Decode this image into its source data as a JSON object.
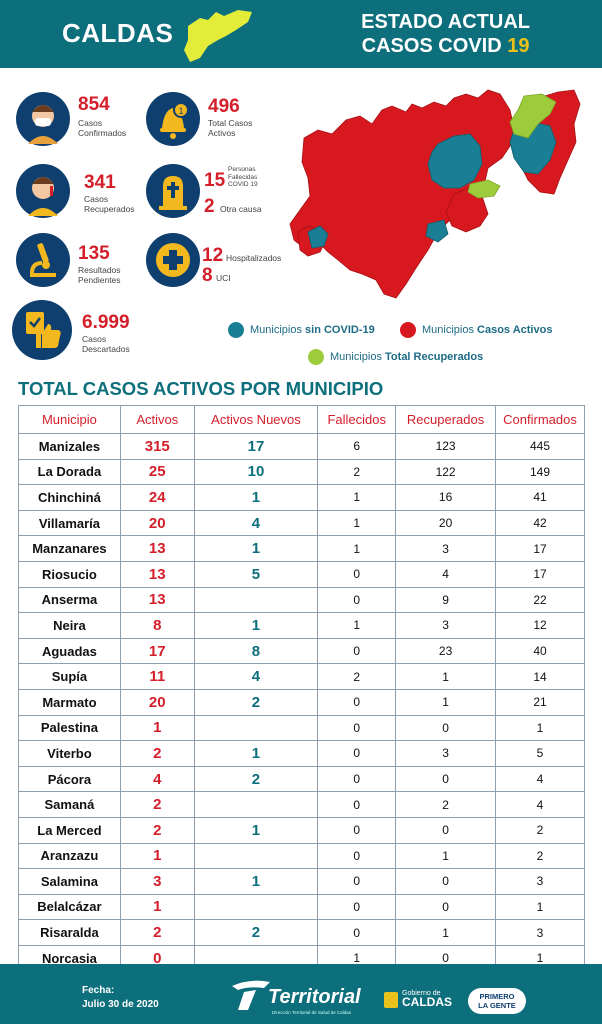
{
  "header": {
    "region": "CALDAS",
    "title_line1": "ESTADO ACTUAL",
    "title_line2": "CASOS COVID",
    "title_accent": "19"
  },
  "stats": {
    "confirmados": {
      "value": "854",
      "label": "Casos Confirmados"
    },
    "activos": {
      "value": "496",
      "label": "Total Casos Activos"
    },
    "recuperados": {
      "value": "341",
      "label": "Casos Recuperados"
    },
    "fallecidos": {
      "value": "15",
      "label": "Personas Fallecidas COVID 19"
    },
    "otra_causa": {
      "value": "2",
      "label": "Otra causa"
    },
    "pendientes": {
      "value": "135",
      "label": "Resultados Pendientes"
    },
    "hospitalizados": {
      "value": "12",
      "label": "Hospitalizados"
    },
    "uci": {
      "value": "8",
      "label": "UCI"
    },
    "descartados": {
      "value": "6.999",
      "label": "Casos Descartados"
    }
  },
  "legend": {
    "sin_covid": {
      "text": "Municipios ",
      "bold": "sin COVID-19",
      "color": "#1a7f95"
    },
    "activos": {
      "text": "Municipios ",
      "bold": "Casos Activos",
      "color": "#d7191f"
    },
    "recuperados": {
      "text": "Municipios ",
      "bold": "Total Recuperados",
      "color": "#9ccc3c"
    }
  },
  "table": {
    "title": "TOTAL CASOS ACTIVOS POR MUNICIPIO",
    "headers": [
      "Municipio",
      "Activos",
      "Activos Nuevos",
      "Fallecidos",
      "Recuperados",
      "Confirmados"
    ],
    "rows": [
      [
        "Manizales",
        "315",
        "17",
        "6",
        "123",
        "445"
      ],
      [
        "La Dorada",
        "25",
        "10",
        "2",
        "122",
        "149"
      ],
      [
        "Chinchiná",
        "24",
        "1",
        "1",
        "16",
        "41"
      ],
      [
        "Villamaría",
        "20",
        "4",
        "1",
        "20",
        "42"
      ],
      [
        "Manzanares",
        "13",
        "1",
        "1",
        "3",
        "17"
      ],
      [
        "Riosucio",
        "13",
        "5",
        "0",
        "4",
        "17"
      ],
      [
        "Anserma",
        "13",
        "",
        "0",
        "9",
        "22"
      ],
      [
        "Neira",
        "8",
        "1",
        "1",
        "3",
        "12"
      ],
      [
        "Aguadas",
        "17",
        "8",
        "0",
        "23",
        "40"
      ],
      [
        "Supía",
        "11",
        "4",
        "2",
        "1",
        "14"
      ],
      [
        "Marmato",
        "20",
        "2",
        "0",
        "1",
        "21"
      ],
      [
        "Palestina",
        "1",
        "",
        "0",
        "0",
        "1"
      ],
      [
        "Viterbo",
        "2",
        "1",
        "0",
        "3",
        "5"
      ],
      [
        "Pácora",
        "4",
        "2",
        "0",
        "0",
        "4"
      ],
      [
        "Samaná",
        "2",
        "",
        "0",
        "2",
        "4"
      ],
      [
        "La Merced",
        "2",
        "1",
        "0",
        "0",
        "2"
      ],
      [
        "Aranzazu",
        "1",
        "",
        "0",
        "1",
        "2"
      ],
      [
        "Salamina",
        "3",
        "1",
        "0",
        "0",
        "3"
      ],
      [
        "Belalcázar",
        "1",
        "",
        "0",
        "0",
        "1"
      ],
      [
        "Risaralda",
        "2",
        "2",
        "0",
        "1",
        "3"
      ],
      [
        "Norcasia",
        "0",
        "",
        "1",
        "0",
        "1"
      ]
    ]
  },
  "footer": {
    "fecha_label": "Fecha:",
    "fecha": "Julio 30 de 2020",
    "logo": "Territorial",
    "logo_sub": "Dirección Territorial de Salud de Caldas",
    "gob_line1": "Gobierno de",
    "gob_line2": "CALDAS",
    "badge_line1": "PRIMERO",
    "badge_line2": "LA GENTE"
  }
}
